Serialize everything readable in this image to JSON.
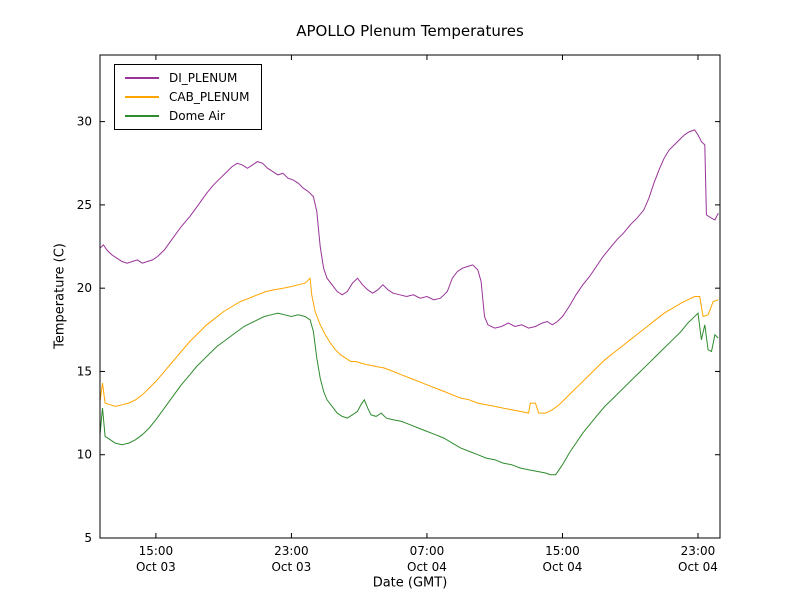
{
  "chart_data": {
    "type": "line",
    "title": "APOLLO Plenum Temperatures",
    "xlabel": "Date (GMT)",
    "ylabel": "Temperature (C)",
    "x_unit": "hours since Oct 03 00:00 GMT",
    "xlim": [
      11.7,
      48.3
    ],
    "ylim": [
      5,
      34
    ],
    "grid": false,
    "legend_position": "upper left",
    "yticks": [
      5,
      10,
      15,
      20,
      25,
      30
    ],
    "xticks": [
      {
        "pos": 15,
        "time": "15:00",
        "date": "Oct 03"
      },
      {
        "pos": 23,
        "time": "23:00",
        "date": "Oct 03"
      },
      {
        "pos": 31,
        "time": "07:00",
        "date": "Oct 04"
      },
      {
        "pos": 39,
        "time": "15:00",
        "date": "Oct 04"
      },
      {
        "pos": 47,
        "time": "23:00",
        "date": "Oct 04"
      }
    ],
    "series": [
      {
        "name": "DI_PLENUM",
        "color": "#993399",
        "points": [
          [
            11.7,
            22.4
          ],
          [
            11.9,
            22.6
          ],
          [
            12.1,
            22.3
          ],
          [
            12.4,
            22.0
          ],
          [
            12.7,
            21.8
          ],
          [
            13.0,
            21.6
          ],
          [
            13.3,
            21.5
          ],
          [
            13.6,
            21.6
          ],
          [
            13.9,
            21.7
          ],
          [
            14.2,
            21.5
          ],
          [
            14.5,
            21.6
          ],
          [
            14.8,
            21.7
          ],
          [
            15.1,
            21.9
          ],
          [
            15.5,
            22.3
          ],
          [
            16.0,
            23.0
          ],
          [
            16.5,
            23.7
          ],
          [
            17.0,
            24.3
          ],
          [
            17.5,
            25.0
          ],
          [
            18.0,
            25.7
          ],
          [
            18.4,
            26.2
          ],
          [
            18.8,
            26.6
          ],
          [
            19.2,
            27.0
          ],
          [
            19.5,
            27.3
          ],
          [
            19.8,
            27.5
          ],
          [
            20.1,
            27.4
          ],
          [
            20.4,
            27.2
          ],
          [
            20.7,
            27.4
          ],
          [
            21.0,
            27.6
          ],
          [
            21.3,
            27.5
          ],
          [
            21.6,
            27.2
          ],
          [
            21.9,
            27.0
          ],
          [
            22.2,
            26.8
          ],
          [
            22.5,
            26.9
          ],
          [
            22.8,
            26.6
          ],
          [
            23.1,
            26.5
          ],
          [
            23.4,
            26.3
          ],
          [
            23.7,
            26.0
          ],
          [
            24.0,
            25.8
          ],
          [
            24.3,
            25.5
          ],
          [
            24.5,
            24.6
          ],
          [
            24.7,
            22.5
          ],
          [
            24.9,
            21.2
          ],
          [
            25.1,
            20.6
          ],
          [
            25.4,
            20.2
          ],
          [
            25.7,
            19.8
          ],
          [
            26.0,
            19.6
          ],
          [
            26.3,
            19.8
          ],
          [
            26.6,
            20.3
          ],
          [
            26.9,
            20.6
          ],
          [
            27.2,
            20.2
          ],
          [
            27.5,
            19.9
          ],
          [
            27.8,
            19.7
          ],
          [
            28.1,
            19.9
          ],
          [
            28.4,
            20.2
          ],
          [
            28.7,
            19.9
          ],
          [
            29.0,
            19.7
          ],
          [
            29.4,
            19.6
          ],
          [
            29.8,
            19.5
          ],
          [
            30.2,
            19.6
          ],
          [
            30.6,
            19.4
          ],
          [
            31.0,
            19.5
          ],
          [
            31.4,
            19.3
          ],
          [
            31.8,
            19.4
          ],
          [
            32.2,
            19.8
          ],
          [
            32.5,
            20.6
          ],
          [
            32.8,
            21.0
          ],
          [
            33.1,
            21.2
          ],
          [
            33.4,
            21.3
          ],
          [
            33.7,
            21.4
          ],
          [
            34.0,
            21.1
          ],
          [
            34.2,
            20.4
          ],
          [
            34.4,
            18.3
          ],
          [
            34.6,
            17.8
          ],
          [
            35.0,
            17.6
          ],
          [
            35.4,
            17.7
          ],
          [
            35.8,
            17.9
          ],
          [
            36.2,
            17.7
          ],
          [
            36.6,
            17.8
          ],
          [
            37.0,
            17.6
          ],
          [
            37.4,
            17.7
          ],
          [
            37.8,
            17.9
          ],
          [
            38.1,
            18.0
          ],
          [
            38.4,
            17.8
          ],
          [
            38.7,
            18.0
          ],
          [
            39.0,
            18.3
          ],
          [
            39.4,
            18.9
          ],
          [
            39.8,
            19.6
          ],
          [
            40.2,
            20.2
          ],
          [
            40.6,
            20.7
          ],
          [
            41.0,
            21.3
          ],
          [
            41.4,
            21.9
          ],
          [
            41.8,
            22.4
          ],
          [
            42.2,
            22.9
          ],
          [
            42.6,
            23.3
          ],
          [
            43.0,
            23.8
          ],
          [
            43.4,
            24.2
          ],
          [
            43.8,
            24.7
          ],
          [
            44.1,
            25.4
          ],
          [
            44.4,
            26.3
          ],
          [
            44.7,
            27.1
          ],
          [
            45.0,
            27.8
          ],
          [
            45.3,
            28.3
          ],
          [
            45.6,
            28.6
          ],
          [
            45.9,
            28.9
          ],
          [
            46.2,
            29.2
          ],
          [
            46.5,
            29.4
          ],
          [
            46.8,
            29.5
          ],
          [
            47.0,
            29.2
          ],
          [
            47.2,
            28.8
          ],
          [
            47.4,
            28.6
          ],
          [
            47.5,
            24.4
          ],
          [
            47.8,
            24.2
          ],
          [
            48.0,
            24.1
          ],
          [
            48.2,
            24.5
          ]
        ]
      },
      {
        "name": "CAB_PLENUM",
        "color": "#ffa500",
        "points": [
          [
            11.7,
            13.2
          ],
          [
            11.85,
            14.3
          ],
          [
            12.0,
            13.1
          ],
          [
            12.3,
            13.0
          ],
          [
            12.6,
            12.9
          ],
          [
            13.0,
            13.0
          ],
          [
            13.4,
            13.1
          ],
          [
            13.8,
            13.3
          ],
          [
            14.2,
            13.6
          ],
          [
            14.6,
            14.0
          ],
          [
            15.0,
            14.4
          ],
          [
            15.5,
            15.0
          ],
          [
            16.0,
            15.6
          ],
          [
            16.5,
            16.2
          ],
          [
            17.0,
            16.8
          ],
          [
            17.5,
            17.3
          ],
          [
            18.0,
            17.8
          ],
          [
            18.5,
            18.2
          ],
          [
            19.0,
            18.6
          ],
          [
            19.5,
            18.9
          ],
          [
            20.0,
            19.2
          ],
          [
            20.5,
            19.4
          ],
          [
            21.0,
            19.6
          ],
          [
            21.5,
            19.8
          ],
          [
            22.0,
            19.9
          ],
          [
            22.5,
            20.0
          ],
          [
            23.0,
            20.1
          ],
          [
            23.4,
            20.2
          ],
          [
            23.8,
            20.3
          ],
          [
            24.1,
            20.6
          ],
          [
            24.2,
            19.6
          ],
          [
            24.4,
            18.6
          ],
          [
            24.7,
            17.8
          ],
          [
            25.0,
            17.2
          ],
          [
            25.3,
            16.7
          ],
          [
            25.6,
            16.3
          ],
          [
            25.9,
            16.0
          ],
          [
            26.2,
            15.8
          ],
          [
            26.5,
            15.6
          ],
          [
            26.8,
            15.6
          ],
          [
            27.1,
            15.5
          ],
          [
            27.5,
            15.4
          ],
          [
            28.0,
            15.3
          ],
          [
            28.5,
            15.2
          ],
          [
            29.0,
            15.0
          ],
          [
            29.5,
            14.8
          ],
          [
            30.0,
            14.6
          ],
          [
            30.5,
            14.4
          ],
          [
            31.0,
            14.2
          ],
          [
            31.5,
            14.0
          ],
          [
            32.0,
            13.8
          ],
          [
            32.5,
            13.6
          ],
          [
            33.0,
            13.4
          ],
          [
            33.5,
            13.3
          ],
          [
            34.0,
            13.1
          ],
          [
            34.5,
            13.0
          ],
          [
            35.0,
            12.9
          ],
          [
            35.5,
            12.8
          ],
          [
            36.0,
            12.7
          ],
          [
            36.5,
            12.6
          ],
          [
            37.0,
            12.5
          ],
          [
            37.1,
            13.1
          ],
          [
            37.4,
            13.1
          ],
          [
            37.6,
            12.5
          ],
          [
            38.0,
            12.5
          ],
          [
            38.4,
            12.7
          ],
          [
            38.8,
            13.0
          ],
          [
            39.2,
            13.4
          ],
          [
            39.6,
            13.8
          ],
          [
            40.0,
            14.2
          ],
          [
            40.5,
            14.7
          ],
          [
            41.0,
            15.2
          ],
          [
            41.5,
            15.7
          ],
          [
            42.0,
            16.1
          ],
          [
            42.5,
            16.5
          ],
          [
            43.0,
            16.9
          ],
          [
            43.5,
            17.3
          ],
          [
            44.0,
            17.7
          ],
          [
            44.5,
            18.1
          ],
          [
            45.0,
            18.5
          ],
          [
            45.5,
            18.8
          ],
          [
            46.0,
            19.1
          ],
          [
            46.4,
            19.3
          ],
          [
            46.8,
            19.5
          ],
          [
            47.1,
            19.5
          ],
          [
            47.3,
            18.3
          ],
          [
            47.6,
            18.4
          ],
          [
            47.9,
            19.2
          ],
          [
            48.2,
            19.3
          ]
        ]
      },
      {
        "name": "Dome Air",
        "color": "#2e8b2e",
        "points": [
          [
            11.7,
            11.2
          ],
          [
            11.85,
            12.8
          ],
          [
            12.0,
            11.1
          ],
          [
            12.3,
            10.9
          ],
          [
            12.6,
            10.7
          ],
          [
            13.0,
            10.6
          ],
          [
            13.4,
            10.7
          ],
          [
            13.8,
            10.9
          ],
          [
            14.2,
            11.2
          ],
          [
            14.6,
            11.6
          ],
          [
            15.0,
            12.1
          ],
          [
            15.5,
            12.8
          ],
          [
            16.0,
            13.5
          ],
          [
            16.5,
            14.2
          ],
          [
            17.0,
            14.8
          ],
          [
            17.4,
            15.3
          ],
          [
            17.8,
            15.7
          ],
          [
            18.2,
            16.1
          ],
          [
            18.6,
            16.5
          ],
          [
            19.0,
            16.8
          ],
          [
            19.4,
            17.1
          ],
          [
            19.8,
            17.4
          ],
          [
            20.2,
            17.7
          ],
          [
            20.6,
            17.9
          ],
          [
            21.0,
            18.1
          ],
          [
            21.4,
            18.3
          ],
          [
            21.8,
            18.4
          ],
          [
            22.2,
            18.5
          ],
          [
            22.6,
            18.4
          ],
          [
            23.0,
            18.3
          ],
          [
            23.4,
            18.4
          ],
          [
            23.8,
            18.3
          ],
          [
            24.1,
            18.1
          ],
          [
            24.3,
            17.4
          ],
          [
            24.5,
            15.8
          ],
          [
            24.7,
            14.6
          ],
          [
            24.9,
            13.8
          ],
          [
            25.1,
            13.3
          ],
          [
            25.4,
            12.9
          ],
          [
            25.7,
            12.5
          ],
          [
            26.0,
            12.3
          ],
          [
            26.3,
            12.2
          ],
          [
            26.6,
            12.4
          ],
          [
            26.9,
            12.6
          ],
          [
            27.1,
            13.0
          ],
          [
            27.3,
            13.3
          ],
          [
            27.5,
            12.8
          ],
          [
            27.7,
            12.4
          ],
          [
            28.0,
            12.3
          ],
          [
            28.3,
            12.5
          ],
          [
            28.6,
            12.2
          ],
          [
            29.0,
            12.1
          ],
          [
            29.5,
            12.0
          ],
          [
            30.0,
            11.8
          ],
          [
            30.5,
            11.6
          ],
          [
            31.0,
            11.4
          ],
          [
            31.5,
            11.2
          ],
          [
            32.0,
            11.0
          ],
          [
            32.5,
            10.7
          ],
          [
            33.0,
            10.4
          ],
          [
            33.5,
            10.2
          ],
          [
            34.0,
            10.0
          ],
          [
            34.5,
            9.8
          ],
          [
            35.0,
            9.7
          ],
          [
            35.5,
            9.5
          ],
          [
            36.0,
            9.4
          ],
          [
            36.5,
            9.2
          ],
          [
            37.0,
            9.1
          ],
          [
            37.5,
            9.0
          ],
          [
            38.0,
            8.9
          ],
          [
            38.3,
            8.8
          ],
          [
            38.6,
            8.8
          ],
          [
            39.0,
            9.4
          ],
          [
            39.4,
            10.1
          ],
          [
            39.8,
            10.7
          ],
          [
            40.2,
            11.3
          ],
          [
            40.6,
            11.8
          ],
          [
            41.0,
            12.3
          ],
          [
            41.5,
            12.9
          ],
          [
            42.0,
            13.4
          ],
          [
            42.5,
            13.9
          ],
          [
            43.0,
            14.4
          ],
          [
            43.5,
            14.9
          ],
          [
            44.0,
            15.4
          ],
          [
            44.5,
            15.9
          ],
          [
            45.0,
            16.4
          ],
          [
            45.5,
            16.9
          ],
          [
            46.0,
            17.4
          ],
          [
            46.4,
            17.9
          ],
          [
            46.7,
            18.2
          ],
          [
            47.0,
            18.5
          ],
          [
            47.2,
            16.9
          ],
          [
            47.4,
            17.8
          ],
          [
            47.6,
            16.3
          ],
          [
            47.8,
            16.2
          ],
          [
            48.0,
            17.2
          ],
          [
            48.2,
            17.0
          ]
        ]
      }
    ]
  }
}
